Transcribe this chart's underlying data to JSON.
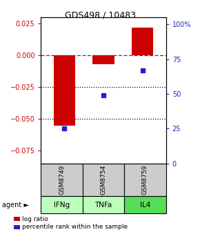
{
  "title": "GDS498 / 10483",
  "samples": [
    "GSM8749",
    "GSM8754",
    "GSM8759"
  ],
  "agents": [
    "IFNg",
    "TNFa",
    "IL4"
  ],
  "log_ratios": [
    -0.055,
    -0.007,
    0.022
  ],
  "percentile_ranks": [
    25,
    49,
    67
  ],
  "ylim_left": [
    -0.085,
    0.03
  ],
  "ylim_right": [
    0,
    105
  ],
  "yticks_left": [
    0.025,
    0.0,
    -0.025,
    -0.05,
    -0.075
  ],
  "yticks_right_vals": [
    100,
    75,
    50,
    25,
    0
  ],
  "yticks_right_labels": [
    "100%",
    "75",
    "50",
    "25",
    "0"
  ],
  "bar_color": "#cc0000",
  "dot_color": "#2222cc",
  "zero_line_color": "#cc0000",
  "agent_colors": [
    "#bbffbb",
    "#bbffbb",
    "#55dd55"
  ],
  "bar_width": 0.55,
  "left_tick_color": "#cc0000",
  "right_tick_color": "#2222cc"
}
